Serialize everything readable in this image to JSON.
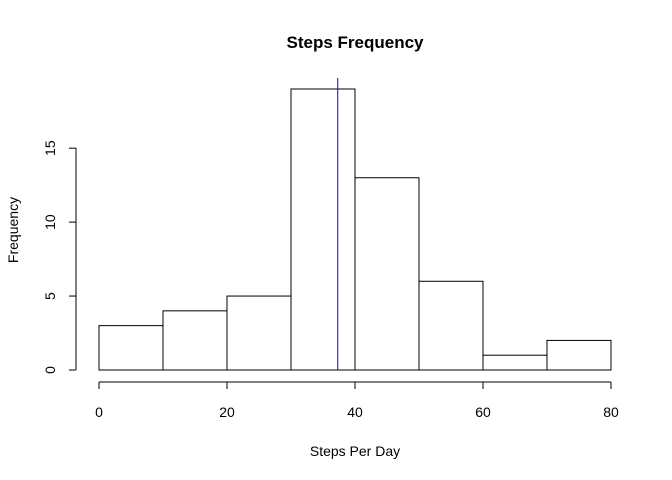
{
  "chart_data": {
    "type": "bar",
    "subtype": "histogram",
    "title": "Steps Frequency",
    "xlabel": "Steps Per Day",
    "ylabel": "Frequency",
    "bins": [
      {
        "start": 0,
        "end": 10,
        "count": 3
      },
      {
        "start": 10,
        "end": 20,
        "count": 4
      },
      {
        "start": 20,
        "end": 30,
        "count": 5
      },
      {
        "start": 30,
        "end": 40,
        "count": 19
      },
      {
        "start": 40,
        "end": 50,
        "count": 13
      },
      {
        "start": 50,
        "end": 60,
        "count": 6
      },
      {
        "start": 60,
        "end": 70,
        "count": 1
      },
      {
        "start": 70,
        "end": 80,
        "count": 2
      }
    ],
    "xlim": [
      0,
      80
    ],
    "ylim": [
      0,
      19
    ],
    "x_ticks": [
      0,
      20,
      40,
      60,
      80
    ],
    "y_ticks": [
      0,
      5,
      10,
      15
    ],
    "reference_line": {
      "x": 37.3,
      "color": "#0000ff"
    },
    "bar_fill": "#ffffff",
    "bar_stroke": "#000000",
    "grid": false,
    "legend": "none"
  }
}
